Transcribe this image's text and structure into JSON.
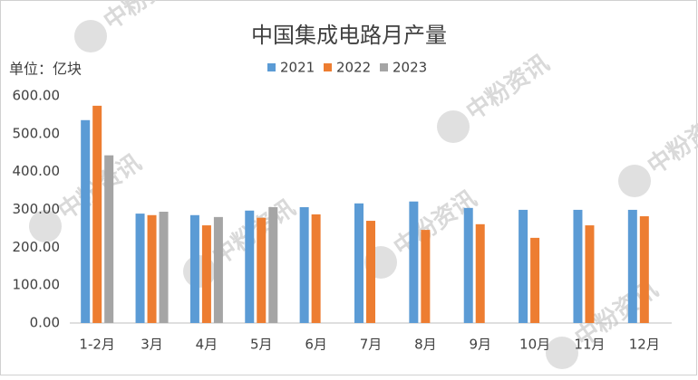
{
  "chart_data": {
    "type": "bar",
    "title": "中国集成电路月产量",
    "y_unit_label": "单位：亿块",
    "watermark": "中粉资讯",
    "categories": [
      "1-2月",
      "3月",
      "4月",
      "5月",
      "6月",
      "7月",
      "8月",
      "9月",
      "10月",
      "11月",
      "12月"
    ],
    "series": [
      {
        "name": "2021",
        "color": "#5b9bd5",
        "values": [
          536,
          289,
          285,
          297,
          306,
          316,
          321,
          304,
          299,
          299,
          299
        ]
      },
      {
        "name": "2022",
        "color": "#ed7d31",
        "values": [
          574,
          285,
          258,
          278,
          287,
          270,
          246,
          261,
          225,
          258,
          282
        ]
      },
      {
        "name": "2023",
        "color": "#a5a5a5",
        "values": [
          443,
          294,
          280,
          306,
          null,
          null,
          null,
          null,
          null,
          null,
          null
        ]
      }
    ],
    "ylim": [
      0,
      600
    ],
    "yticks": [
      {
        "value": 0,
        "label": "0.00"
      },
      {
        "value": 100,
        "label": "100.00"
      },
      {
        "value": 200,
        "label": "200.00"
      },
      {
        "value": 300,
        "label": "300.00"
      },
      {
        "value": 400,
        "label": "400.00"
      },
      {
        "value": 500,
        "label": "500.00"
      },
      {
        "value": 600,
        "label": "600.00"
      }
    ],
    "grid": false,
    "legend": "top"
  }
}
